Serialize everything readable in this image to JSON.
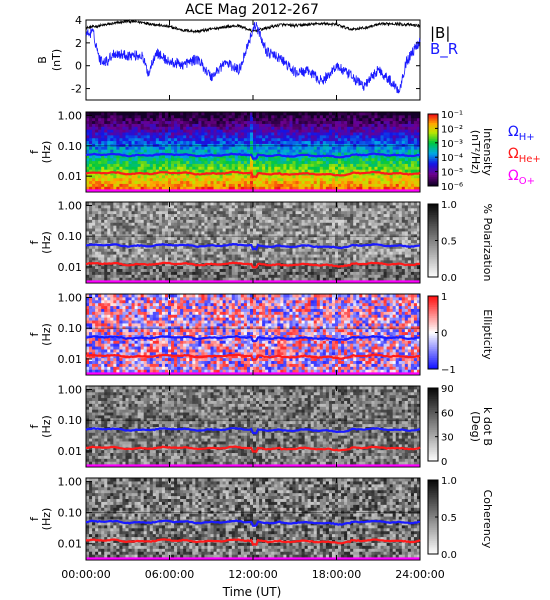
{
  "chart_data": [
    {
      "type": "line",
      "title": "ACE Mag 2012-267",
      "ylabel": "B\n(nT)",
      "ylim": [
        -3,
        4
      ],
      "yticks": [
        "4",
        "2",
        "0",
        "-2"
      ],
      "legend": [
        "|B|",
        "B_R"
      ],
      "legend_colors": [
        "#000000",
        "#1a1aff"
      ],
      "series": [
        {
          "name": "|B|",
          "color": "#000000",
          "x_hours": [
            0,
            1,
            2,
            3,
            4,
            5,
            6,
            7,
            8,
            9,
            10,
            11,
            12,
            13,
            14,
            15,
            16,
            17,
            18,
            19,
            20,
            21,
            22,
            23,
            24
          ],
          "values": [
            3.3,
            3.5,
            3.7,
            3.9,
            3.8,
            3.6,
            3.4,
            3.1,
            3.0,
            3.2,
            3.4,
            3.5,
            3.0,
            3.3,
            3.6,
            3.5,
            3.6,
            3.7,
            3.6,
            3.2,
            3.3,
            3.6,
            3.7,
            3.6,
            3.5
          ]
        },
        {
          "name": "B_R",
          "color": "#1a1aff",
          "x_hours": [
            0,
            0.5,
            1,
            1.5,
            2,
            3,
            4,
            4.5,
            5,
            6,
            7,
            8,
            9,
            10,
            11,
            12,
            12.2,
            13,
            14,
            15,
            16,
            17,
            18,
            19,
            20,
            21,
            22,
            22.5,
            23,
            24
          ],
          "values": [
            2.8,
            2.9,
            0.5,
            0.4,
            1.1,
            0.9,
            0.9,
            -0.7,
            1.2,
            0.3,
            0.1,
            0.6,
            -1.0,
            0.3,
            -0.4,
            3.2,
            3.6,
            1.2,
            0.6,
            -0.6,
            -0.5,
            -1.4,
            0.0,
            -0.9,
            -1.8,
            -0.3,
            -1.5,
            -2.2,
            0.3,
            2.2
          ]
        }
      ]
    },
    {
      "type": "heatmap",
      "ylabel": "f\n(Hz)",
      "yticks": [
        "1.00",
        "0.10",
        "0.01"
      ],
      "colorbar_label": "Intensity\n(nT²/Hz)",
      "colorbar_ticks": [
        "10⁻¹",
        "10⁻²",
        "10⁻³",
        "10⁻⁴",
        "10⁻⁵",
        "10⁻⁶"
      ],
      "legend": [
        "Ω_H+",
        "Ω_He+",
        "Ω_O+"
      ],
      "legend_colors": [
        "#1a1aff",
        "#ff1a1a",
        "#ff00ff"
      ]
    },
    {
      "type": "heatmap",
      "ylabel": "f\n(Hz)",
      "yticks": [
        "1.00",
        "0.10",
        "0.01"
      ],
      "colorbar_label": "% Polarization",
      "colorbar_ticks": [
        "1.0",
        "0.5",
        "0.0"
      ]
    },
    {
      "type": "heatmap",
      "ylabel": "f\n(Hz)",
      "yticks": [
        "1.00",
        "0.10",
        "0.01"
      ],
      "colorbar_label": "Ellipticity",
      "colorbar_ticks": [
        "1",
        "0",
        "−1"
      ]
    },
    {
      "type": "heatmap",
      "ylabel": "f\n(Hz)",
      "yticks": [
        "1.00",
        "0.10",
        "0.01"
      ],
      "colorbar_label": "k dot B\n(Deg)",
      "colorbar_ticks": [
        "90",
        "60",
        "30",
        "0"
      ]
    },
    {
      "type": "heatmap",
      "ylabel": "f\n(Hz)",
      "yticks": [
        "1.00",
        "0.10",
        "0.01"
      ],
      "colorbar_label": "Coherency",
      "colorbar_ticks": [
        "1.0",
        "0.5",
        "0.0"
      ],
      "xlabel": "Time (UT)",
      "xticks": [
        "00:00:00",
        "06:00:00",
        "12:00:00",
        "18:00:00",
        "24:00:00"
      ]
    }
  ],
  "gyro_lines": {
    "H": {
      "f_hz": 0.05,
      "color": "#1a1aff"
    },
    "He": {
      "f_hz": 0.0125,
      "color": "#ff1a1a"
    },
    "O": {
      "f_hz": 0.0031,
      "color": "#ff00ff"
    }
  }
}
